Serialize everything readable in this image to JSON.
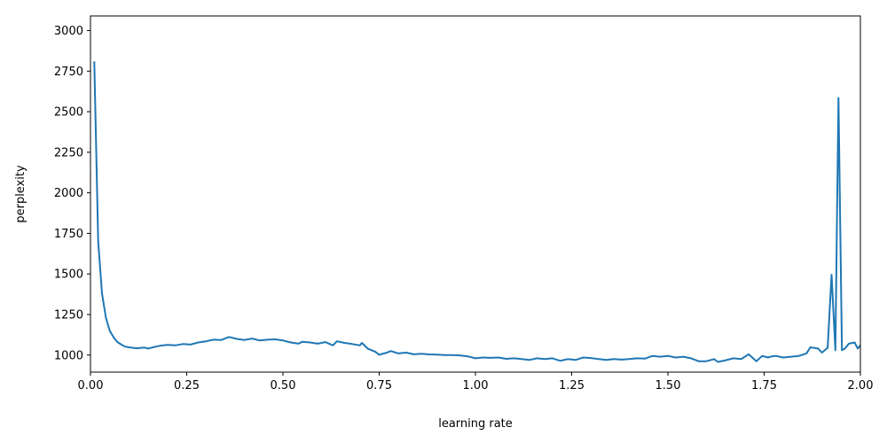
{
  "chart_data": {
    "type": "line",
    "title": "",
    "xlabel": "learning rate",
    "ylabel": "perplexity",
    "xlim": [
      0.0,
      2.0
    ],
    "ylim": [
      895,
      3090
    ],
    "grid": false,
    "x_ticks": [
      0.0,
      0.25,
      0.5,
      0.75,
      1.0,
      1.25,
      1.5,
      1.75,
      2.0
    ],
    "x_tick_labels": [
      "0.00",
      "0.25",
      "0.50",
      "0.75",
      "1.00",
      "1.25",
      "1.50",
      "1.75",
      "2.00"
    ],
    "y_ticks": [
      1000,
      1250,
      1500,
      1750,
      2000,
      2250,
      2500,
      2750,
      3000
    ],
    "y_tick_labels": [
      "1000",
      "1250",
      "1500",
      "1750",
      "2000",
      "2250",
      "2500",
      "2750",
      "3000"
    ],
    "series": [
      {
        "color": "#1f77b4",
        "points": [
          [
            0.01,
            2810
          ],
          [
            0.02,
            1700
          ],
          [
            0.03,
            1380
          ],
          [
            0.04,
            1230
          ],
          [
            0.05,
            1150
          ],
          [
            0.06,
            1110
          ],
          [
            0.07,
            1080
          ],
          [
            0.08,
            1065
          ],
          [
            0.09,
            1052
          ],
          [
            0.1,
            1048
          ],
          [
            0.12,
            1042
          ],
          [
            0.14,
            1046
          ],
          [
            0.15,
            1040
          ],
          [
            0.17,
            1052
          ],
          [
            0.18,
            1057
          ],
          [
            0.2,
            1063
          ],
          [
            0.22,
            1060
          ],
          [
            0.24,
            1068
          ],
          [
            0.26,
            1065
          ],
          [
            0.28,
            1078
          ],
          [
            0.3,
            1085
          ],
          [
            0.32,
            1095
          ],
          [
            0.34,
            1093
          ],
          [
            0.36,
            1112
          ],
          [
            0.38,
            1100
          ],
          [
            0.4,
            1093
          ],
          [
            0.42,
            1102
          ],
          [
            0.44,
            1090
          ],
          [
            0.46,
            1095
          ],
          [
            0.48,
            1097
          ],
          [
            0.5,
            1090
          ],
          [
            0.52,
            1078
          ],
          [
            0.54,
            1070
          ],
          [
            0.55,
            1082
          ],
          [
            0.57,
            1078
          ],
          [
            0.59,
            1070
          ],
          [
            0.61,
            1080
          ],
          [
            0.63,
            1060
          ],
          [
            0.64,
            1085
          ],
          [
            0.66,
            1075
          ],
          [
            0.68,
            1068
          ],
          [
            0.7,
            1060
          ],
          [
            0.705,
            1075
          ],
          [
            0.72,
            1040
          ],
          [
            0.74,
            1020
          ],
          [
            0.75,
            1002
          ],
          [
            0.77,
            1015
          ],
          [
            0.78,
            1025
          ],
          [
            0.8,
            1010
          ],
          [
            0.82,
            1015
          ],
          [
            0.84,
            1005
          ],
          [
            0.86,
            1008
          ],
          [
            0.88,
            1004
          ],
          [
            0.9,
            1003
          ],
          [
            0.92,
            1000
          ],
          [
            0.94,
            1000
          ],
          [
            0.96,
            998
          ],
          [
            0.98,
            992
          ],
          [
            1.0,
            980
          ],
          [
            1.02,
            985
          ],
          [
            1.04,
            983
          ],
          [
            1.06,
            985
          ],
          [
            1.08,
            977
          ],
          [
            1.1,
            980
          ],
          [
            1.12,
            975
          ],
          [
            1.14,
            970
          ],
          [
            1.16,
            980
          ],
          [
            1.18,
            975
          ],
          [
            1.2,
            980
          ],
          [
            1.22,
            965
          ],
          [
            1.24,
            975
          ],
          [
            1.26,
            970
          ],
          [
            1.28,
            985
          ],
          [
            1.3,
            982
          ],
          [
            1.32,
            975
          ],
          [
            1.34,
            970
          ],
          [
            1.36,
            975
          ],
          [
            1.38,
            972
          ],
          [
            1.4,
            975
          ],
          [
            1.42,
            980
          ],
          [
            1.44,
            978
          ],
          [
            1.46,
            995
          ],
          [
            1.48,
            990
          ],
          [
            1.5,
            995
          ],
          [
            1.52,
            985
          ],
          [
            1.54,
            990
          ],
          [
            1.56,
            980
          ],
          [
            1.58,
            962
          ],
          [
            1.6,
            962
          ],
          [
            1.62,
            975
          ],
          [
            1.63,
            958
          ],
          [
            1.65,
            968
          ],
          [
            1.67,
            980
          ],
          [
            1.69,
            975
          ],
          [
            1.71,
            1005
          ],
          [
            1.73,
            962
          ],
          [
            1.745,
            995
          ],
          [
            1.76,
            985
          ],
          [
            1.77,
            992
          ],
          [
            1.78,
            995
          ],
          [
            1.8,
            985
          ],
          [
            1.82,
            990
          ],
          [
            1.84,
            995
          ],
          [
            1.86,
            1010
          ],
          [
            1.87,
            1048
          ],
          [
            1.89,
            1040
          ],
          [
            1.9,
            1015
          ],
          [
            1.915,
            1045
          ],
          [
            1.925,
            1495
          ],
          [
            1.935,
            1030
          ],
          [
            1.943,
            2585
          ],
          [
            1.952,
            1030
          ],
          [
            1.96,
            1040
          ],
          [
            1.97,
            1070
          ],
          [
            1.985,
            1078
          ],
          [
            1.993,
            1040
          ],
          [
            2.0,
            1060
          ]
        ]
      }
    ]
  }
}
